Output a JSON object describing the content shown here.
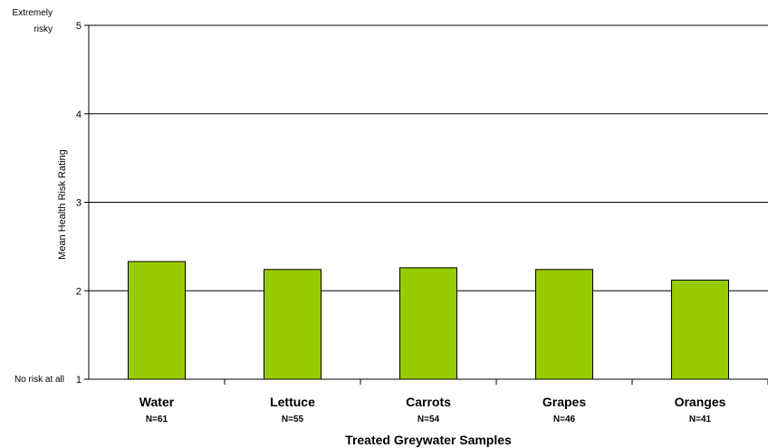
{
  "chart_data": {
    "type": "bar",
    "categories": [
      "Water",
      "Lettuce",
      "Carrots",
      "Grapes",
      "Oranges"
    ],
    "sample_sizes": [
      "N=61",
      "N=55",
      "N=54",
      "N=46",
      "N=41"
    ],
    "values": [
      2.33,
      2.24,
      2.26,
      2.24,
      2.12
    ],
    "xlabel": "Treated Greywater Samples",
    "ylabel": "Mean Health Risk Rating",
    "ylim": [
      1,
      5
    ],
    "yticks": [
      1,
      2,
      3,
      4,
      5
    ],
    "y_anchor_labels": {
      "top_line1": "Extremely",
      "top_line2": "risky",
      "bottom": "No risk at all"
    },
    "grid": true,
    "legend": "none",
    "bar_color": "#99cc00",
    "bar_edge_color": "#000000"
  }
}
